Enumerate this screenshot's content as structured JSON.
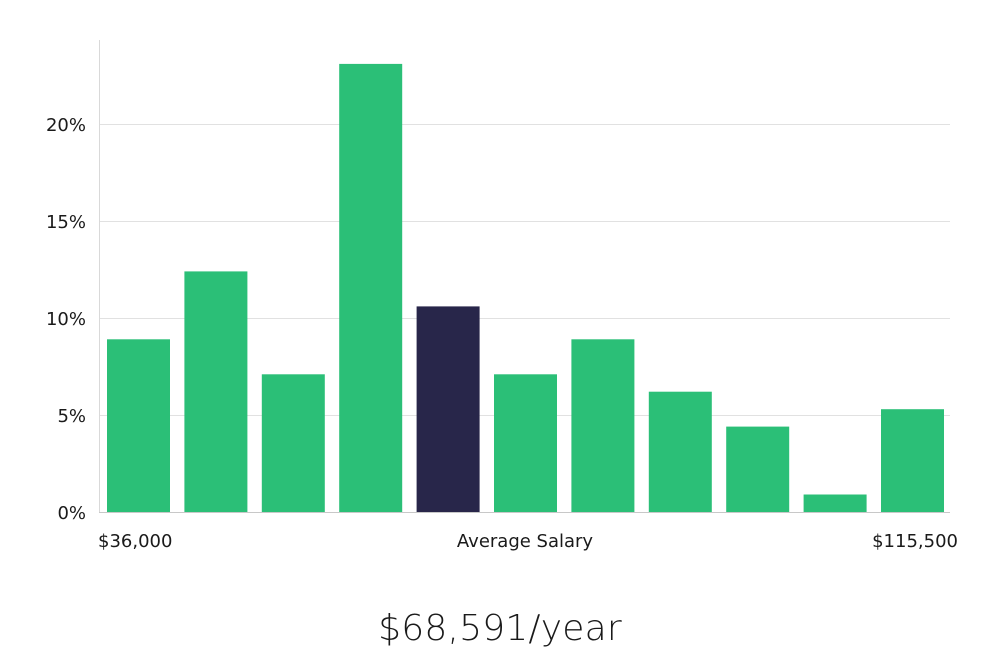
{
  "chart_data": {
    "type": "bar",
    "title": "",
    "xlabel": "Average Salary",
    "ylabel": "",
    "x_min_label": "$36,000",
    "x_max_label": "$115,500",
    "ylim": [
      0,
      24
    ],
    "yticks": [
      0,
      5,
      10,
      15,
      20
    ],
    "ytick_labels": [
      "0%",
      "5%",
      "10%",
      "15%",
      "20%"
    ],
    "grid": true,
    "values": [
      8.9,
      12.4,
      7.1,
      23.1,
      10.6,
      7.1,
      8.9,
      6.2,
      4.4,
      0.9,
      5.3
    ],
    "highlight_index": 4,
    "colors": {
      "bar": "#2bbf77",
      "highlight": "#28264a"
    }
  },
  "summary": {
    "average_salary": "$68,591/year"
  }
}
